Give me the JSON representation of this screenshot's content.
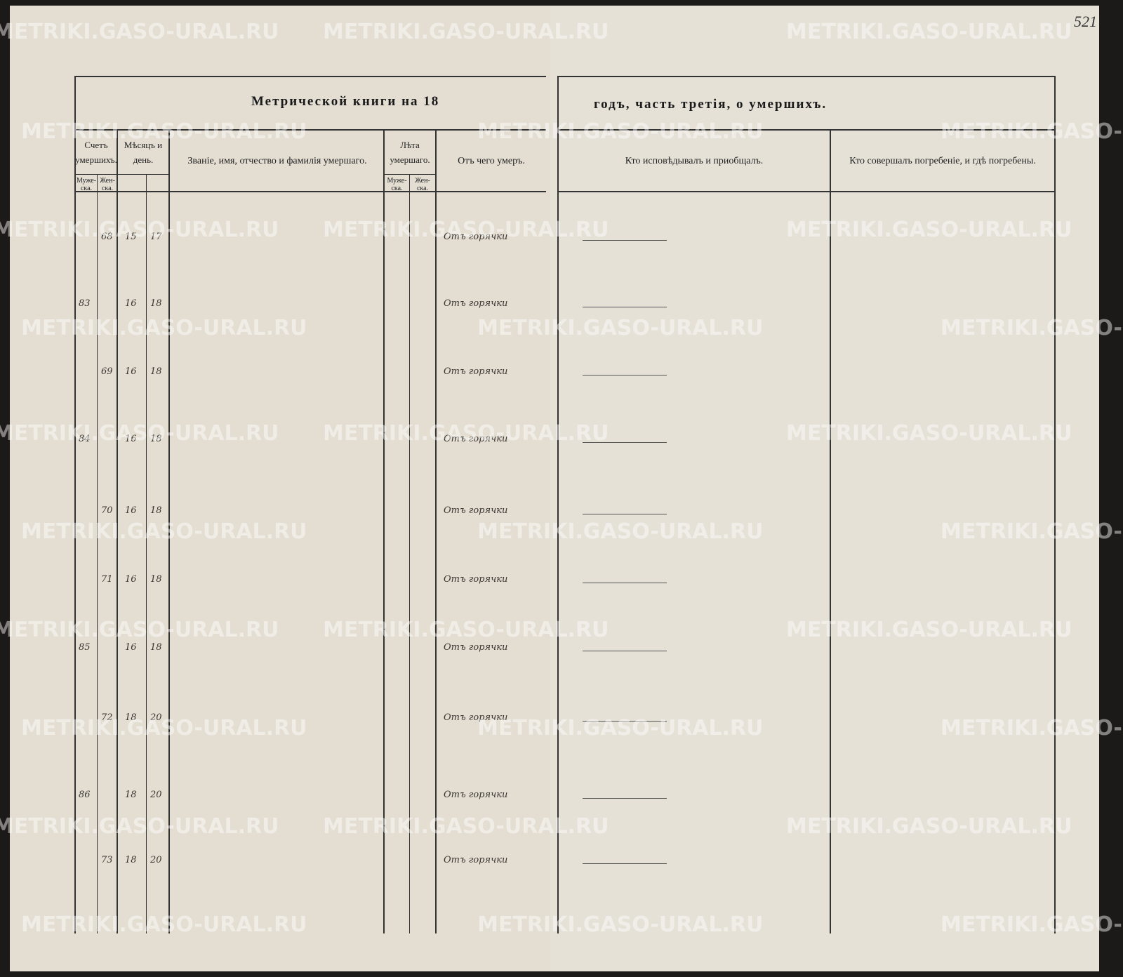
{
  "watermark": "METRIKI.GASO-URAL.RU",
  "page_number": "521",
  "left_page": {
    "title": "Метрической книги на 18",
    "headers": {
      "count": "Счетъ умершихъ.",
      "count_male": "Муже-ска.",
      "count_female": "Жен-ска.",
      "date": "Мѣсяцъ и день.",
      "name": "Званіе, имя, отчество и фамилія умершаго.",
      "age": "Лѣта умершаго.",
      "age_male": "Муже-ска.",
      "age_female": "Жен-ска.",
      "cause": "Отъ чего умеръ."
    }
  },
  "right_page": {
    "title": "годъ, часть третія, о умершихъ.",
    "headers": {
      "confessor": "Кто исповѣдывалъ и приобщалъ.",
      "burial": "Кто совершалъ погребеніе, и гдѣ погребены."
    }
  },
  "rows": [
    {
      "male": "",
      "female": "68",
      "month": "15",
      "day": "17",
      "cause": "Отъ горячки"
    },
    {
      "male": "83",
      "female": "",
      "month": "16",
      "day": "18",
      "cause": "Отъ горячки"
    },
    {
      "male": "",
      "female": "69",
      "month": "16",
      "day": "18",
      "cause": "Отъ горячки"
    },
    {
      "male": "84",
      "female": "",
      "month": "16",
      "day": "18",
      "cause": "Отъ горячки"
    },
    {
      "male": "",
      "female": "70",
      "month": "16",
      "day": "18",
      "cause": "Отъ горячки"
    },
    {
      "male": "",
      "female": "71",
      "month": "16",
      "day": "18",
      "cause": "Отъ горячки"
    },
    {
      "male": "85",
      "female": "",
      "month": "16",
      "day": "18",
      "cause": "Отъ горячки"
    },
    {
      "male": "",
      "female": "72",
      "month": "18",
      "day": "20",
      "cause": "Отъ горячки"
    },
    {
      "male": "86",
      "female": "",
      "month": "18",
      "day": "20",
      "cause": "Отъ горячки"
    },
    {
      "male": "",
      "female": "73",
      "month": "18",
      "day": "20",
      "cause": "Отъ горячки"
    }
  ]
}
